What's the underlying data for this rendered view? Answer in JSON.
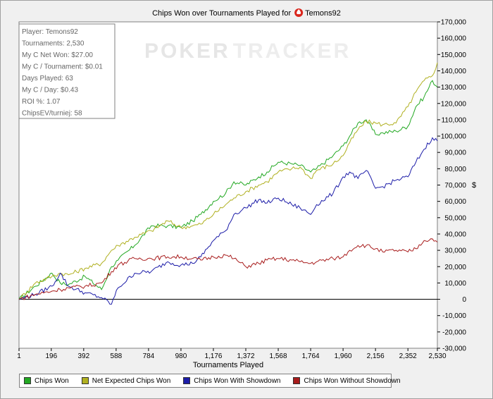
{
  "chart_data": {
    "type": "line",
    "title": "Chips Won over Tournaments Played for",
    "player_name": "Temons92",
    "xlabel": "Tournaments Played",
    "ylabel": "$",
    "xlim": [
      1,
      2530
    ],
    "ylim": [
      -30000,
      170000
    ],
    "x_ticks": [
      "1",
      "196",
      "392",
      "588",
      "784",
      "980",
      "1,176",
      "1,372",
      "1,568",
      "1,764",
      "1,960",
      "2,156",
      "2,352",
      "2,530"
    ],
    "x_tick_values": [
      1,
      196,
      392,
      588,
      784,
      980,
      1176,
      1372,
      1568,
      1764,
      1960,
      2156,
      2352,
      2530
    ],
    "y_ticks": [
      "-30,000",
      "-20,000",
      "-10,000",
      "0",
      "10,000",
      "20,000",
      "30,000",
      "40,000",
      "50,000",
      "60,000",
      "70,000",
      "80,000",
      "90,000",
      "100,000",
      "110,000",
      "120,000",
      "130,000",
      "140,000",
      "150,000",
      "160,000",
      "170,000"
    ],
    "y_tick_values": [
      -30000,
      -20000,
      -10000,
      0,
      10000,
      20000,
      30000,
      40000,
      50000,
      60000,
      70000,
      80000,
      90000,
      100000,
      110000,
      120000,
      130000,
      140000,
      150000,
      160000,
      170000
    ],
    "grid": false,
    "legend_position": "bottom",
    "x": [
      1,
      100,
      200,
      250,
      300,
      400,
      500,
      560,
      600,
      700,
      800,
      900,
      980,
      1050,
      1100,
      1176,
      1250,
      1300,
      1372,
      1450,
      1500,
      1568,
      1650,
      1700,
      1764,
      1800,
      1900,
      1960,
      2000,
      2050,
      2100,
      2156,
      2200,
      2280,
      2352,
      2400,
      2450,
      2500,
      2530
    ],
    "series": [
      {
        "name": "Chips Won",
        "color": "#22a822",
        "values": [
          0,
          8000,
          16000,
          10000,
          9000,
          14000,
          6000,
          20000,
          24000,
          33000,
          45000,
          45000,
          44000,
          48000,
          52000,
          60000,
          65000,
          72000,
          70000,
          75000,
          78000,
          84000,
          83000,
          82000,
          78000,
          80000,
          88000,
          94000,
          100000,
          108000,
          110000,
          101000,
          102000,
          103000,
          106000,
          118000,
          124000,
          134000,
          130000
        ]
      },
      {
        "name": "Net Expected Chips Won",
        "color": "#b0b020",
        "values": [
          0,
          10000,
          14000,
          16000,
          15000,
          19000,
          22000,
          30000,
          33000,
          38000,
          42000,
          48000,
          44000,
          45000,
          46000,
          52000,
          58000,
          62000,
          66000,
          70000,
          72000,
          78000,
          80000,
          81000,
          74000,
          79000,
          83000,
          88000,
          96000,
          104000,
          109000,
          108000,
          107000,
          108000,
          118000,
          127000,
          134000,
          137000,
          145000
        ]
      },
      {
        "name": "Chips Won With Showdown",
        "color": "#1c1ca8",
        "values": [
          0,
          3000,
          8000,
          16000,
          8000,
          4000,
          1000,
          -3000,
          7000,
          16000,
          17000,
          23000,
          21000,
          22000,
          26000,
          36000,
          42000,
          52000,
          56000,
          61000,
          59000,
          62000,
          58000,
          56000,
          52000,
          58000,
          65000,
          75000,
          78000,
          74000,
          79000,
          68000,
          69000,
          73000,
          75000,
          84000,
          92000,
          99000,
          97000
        ]
      },
      {
        "name": "Chips Won Without Showdown",
        "color": "#a81c1c",
        "values": [
          0,
          3000,
          5000,
          6000,
          7000,
          8000,
          10000,
          17000,
          21000,
          25000,
          25000,
          26000,
          26000,
          25000,
          24000,
          26000,
          27000,
          25000,
          20000,
          22000,
          24000,
          25000,
          24000,
          23000,
          22000,
          23000,
          25000,
          26000,
          30000,
          33000,
          33000,
          31000,
          29000,
          30000,
          29000,
          31000,
          36000,
          37000,
          35000
        ]
      }
    ]
  },
  "stats_box": [
    "Player: Temons92",
    "Tournaments: 2,530",
    "My C Net Won: $27.00",
    "My C / Tournament: $0.01",
    "Days Played: 63",
    "My C / Day: $0.43",
    "ROI %: 1.07",
    "ChipsEV/turniej: 58"
  ],
  "watermark": {
    "part1": "POKER",
    "part2": "TRACKER"
  }
}
